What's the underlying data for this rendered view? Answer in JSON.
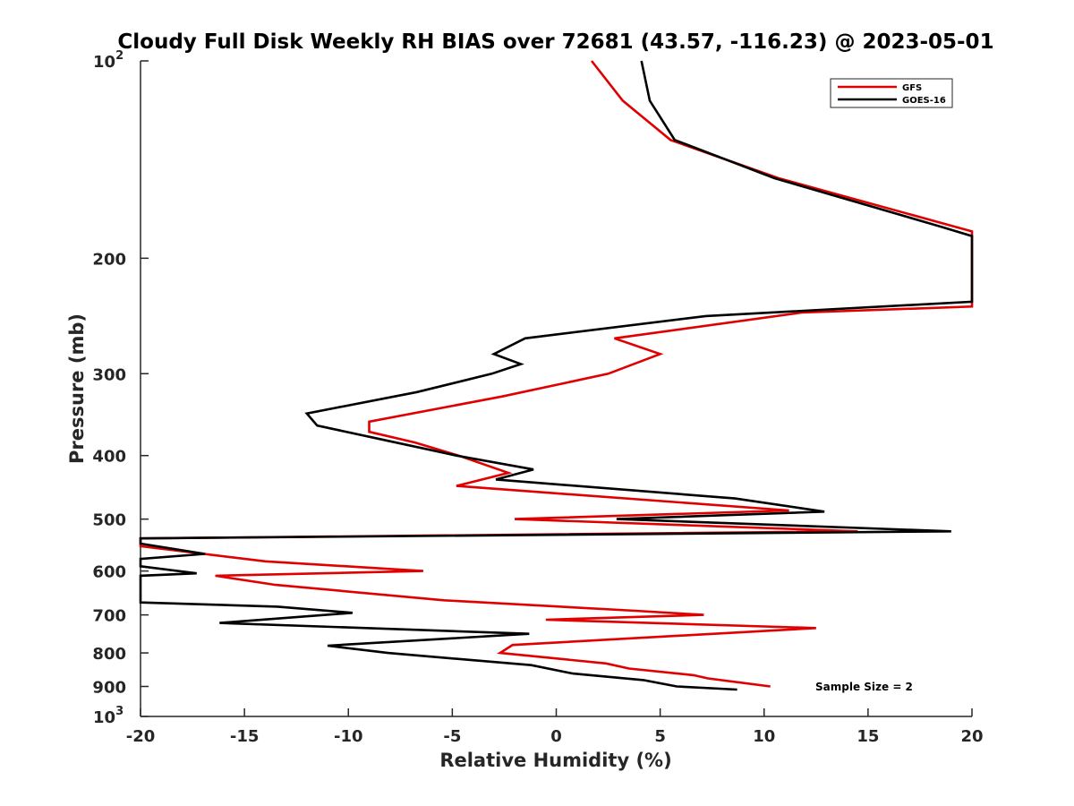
{
  "chart_data": {
    "type": "line",
    "title": "Cloudy Full Disk Weekly RH BIAS over 72681 (43.57, -116.23) @ 2023-05-01",
    "xlabel": "Relative Humidity (%)",
    "ylabel": "Pressure (mb)",
    "xlim": [
      -20,
      20
    ],
    "ylim": [
      100,
      1000
    ],
    "y_scale": "log",
    "y_reversed": true,
    "x_ticks": [
      -20,
      -15,
      -10,
      -5,
      0,
      5,
      10,
      15,
      20
    ],
    "x_tick_labels": [
      "-20",
      "-15",
      "-10",
      "-5",
      "0",
      "5",
      "10",
      "15",
      "20"
    ],
    "y_ticks": [
      100,
      200,
      300,
      400,
      500,
      600,
      700,
      800,
      900,
      1000
    ],
    "y_tick_labels": [
      {
        "base": "10",
        "exp": "2"
      },
      {
        "base": "200",
        "exp": ""
      },
      {
        "base": "300",
        "exp": ""
      },
      {
        "base": "400",
        "exp": ""
      },
      {
        "base": "500",
        "exp": ""
      },
      {
        "base": "600",
        "exp": ""
      },
      {
        "base": "700",
        "exp": ""
      },
      {
        "base": "800",
        "exp": ""
      },
      {
        "base": "900",
        "exp": ""
      },
      {
        "base": "10",
        "exp": "3"
      }
    ],
    "grid": false,
    "legend_position": "top-right",
    "annotation": "Sample Size = 2",
    "series": [
      {
        "name": "GFS",
        "color": "#e00000",
        "points": [
          [
            1.7,
            100
          ],
          [
            3.2,
            115
          ],
          [
            5.5,
            132
          ],
          [
            10.7,
            151
          ],
          [
            20.0,
            182
          ],
          [
            20.0,
            237
          ],
          [
            11.8,
            242
          ],
          [
            2.8,
            265
          ],
          [
            5.0,
            280
          ],
          [
            2.5,
            300
          ],
          [
            -2.6,
            325
          ],
          [
            -9.0,
            355
          ],
          [
            -9.0,
            368
          ],
          [
            -6.8,
            382
          ],
          [
            -4.7,
            400
          ],
          [
            -2.3,
            425
          ],
          [
            -4.8,
            445
          ],
          [
            11.2,
            485
          ],
          [
            -2.0,
            500
          ],
          [
            14.5,
            522
          ],
          [
            -20.0,
            535
          ],
          [
            -20.0,
            550
          ],
          [
            -14.0,
            580
          ],
          [
            -6.4,
            600
          ],
          [
            -16.4,
            610
          ],
          [
            -13.5,
            630
          ],
          [
            -5.4,
            665
          ],
          [
            3.8,
            690
          ],
          [
            7.1,
            700
          ],
          [
            -0.5,
            712
          ],
          [
            12.5,
            733
          ],
          [
            -2.1,
            778
          ],
          [
            -2.7,
            800
          ],
          [
            2.4,
            830
          ],
          [
            3.5,
            845
          ],
          [
            6.6,
            865
          ],
          [
            7.3,
            875
          ],
          [
            10.3,
            900
          ]
        ]
      },
      {
        "name": "GOES-16",
        "color": "#000000",
        "points": [
          [
            4.1,
            100
          ],
          [
            4.5,
            115
          ],
          [
            5.7,
            132
          ],
          [
            10.5,
            151
          ],
          [
            18.5,
            179
          ],
          [
            20.0,
            185
          ],
          [
            20.0,
            233
          ],
          [
            7.2,
            245
          ],
          [
            -1.5,
            265
          ],
          [
            -3.0,
            280
          ],
          [
            -1.7,
            290
          ],
          [
            -3.1,
            300
          ],
          [
            -6.7,
            320
          ],
          [
            -12.0,
            345
          ],
          [
            -11.5,
            360
          ],
          [
            -8.4,
            378
          ],
          [
            -4.8,
            400
          ],
          [
            -1.1,
            420
          ],
          [
            -2.9,
            435
          ],
          [
            8.6,
            465
          ],
          [
            12.9,
            487
          ],
          [
            2.9,
            500
          ],
          [
            19.0,
            522
          ],
          [
            -20.0,
            535
          ],
          [
            -20.0,
            545
          ],
          [
            -16.9,
            565
          ],
          [
            -20.0,
            575
          ],
          [
            -20.0,
            590
          ],
          [
            -17.3,
            605
          ],
          [
            -20.0,
            610
          ],
          [
            -20.0,
            670
          ],
          [
            -13.4,
            680
          ],
          [
            -9.8,
            695
          ],
          [
            -16.2,
            720
          ],
          [
            -1.3,
            748
          ],
          [
            -11.0,
            780
          ],
          [
            -8.1,
            800
          ],
          [
            -1.2,
            835
          ],
          [
            0.8,
            860
          ],
          [
            4.2,
            880
          ],
          [
            5.8,
            900
          ],
          [
            8.7,
            910
          ]
        ]
      }
    ]
  }
}
